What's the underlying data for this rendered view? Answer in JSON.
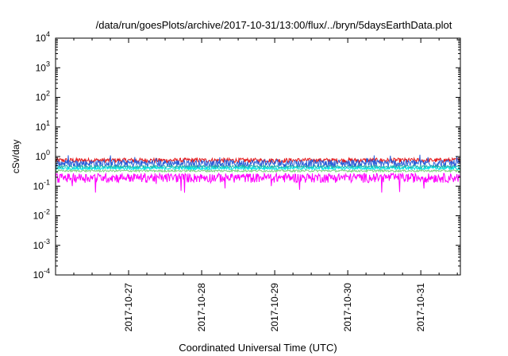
{
  "chart_data": {
    "type": "line",
    "title": "/data/run/goesPlots/archive/2017-10-31/13:00/flux/../bryn/5daysEarthData.plot",
    "xlabel": "Coordinated Universal Time (UTC)",
    "ylabel": "cSv/day",
    "yscale": "log",
    "ylim": [
      0.0001,
      10000
    ],
    "yticks": [
      {
        "value": 0.0001,
        "base": "10",
        "exp": "-4"
      },
      {
        "value": 0.001,
        "base": "10",
        "exp": "-3"
      },
      {
        "value": 0.01,
        "base": "10",
        "exp": "-2"
      },
      {
        "value": 0.1,
        "base": "10",
        "exp": "-1"
      },
      {
        "value": 1,
        "base": "10",
        "exp": "0"
      },
      {
        "value": 10,
        "base": "10",
        "exp": "1"
      },
      {
        "value": 100,
        "base": "10",
        "exp": "2"
      },
      {
        "value": 1000,
        "base": "10",
        "exp": "3"
      },
      {
        "value": 10000,
        "base": "10",
        "exp": "4"
      }
    ],
    "xlim": [
      "2017-10-26T00:00",
      "2017-10-31T13:00"
    ],
    "xticks": [
      "2017-10-27",
      "2017-10-28",
      "2017-10-29",
      "2017-10-30",
      "2017-10-31"
    ],
    "grid": false,
    "series": [
      {
        "color": "#e41a1c",
        "baseline": 0.75,
        "variation": 0.18
      },
      {
        "color": "#2b5fd9",
        "baseline": 0.6,
        "variation": 0.3
      },
      {
        "color": "#20b2aa",
        "baseline": 0.45,
        "variation": 0.12
      },
      {
        "color": "#00e5e5",
        "baseline": 0.4,
        "variation": 0.1
      },
      {
        "color": "#7fd37f",
        "baseline": 0.33,
        "variation": 0.08
      },
      {
        "color": "#ff00ff",
        "baseline": 0.2,
        "variation": 0.35
      }
    ]
  }
}
